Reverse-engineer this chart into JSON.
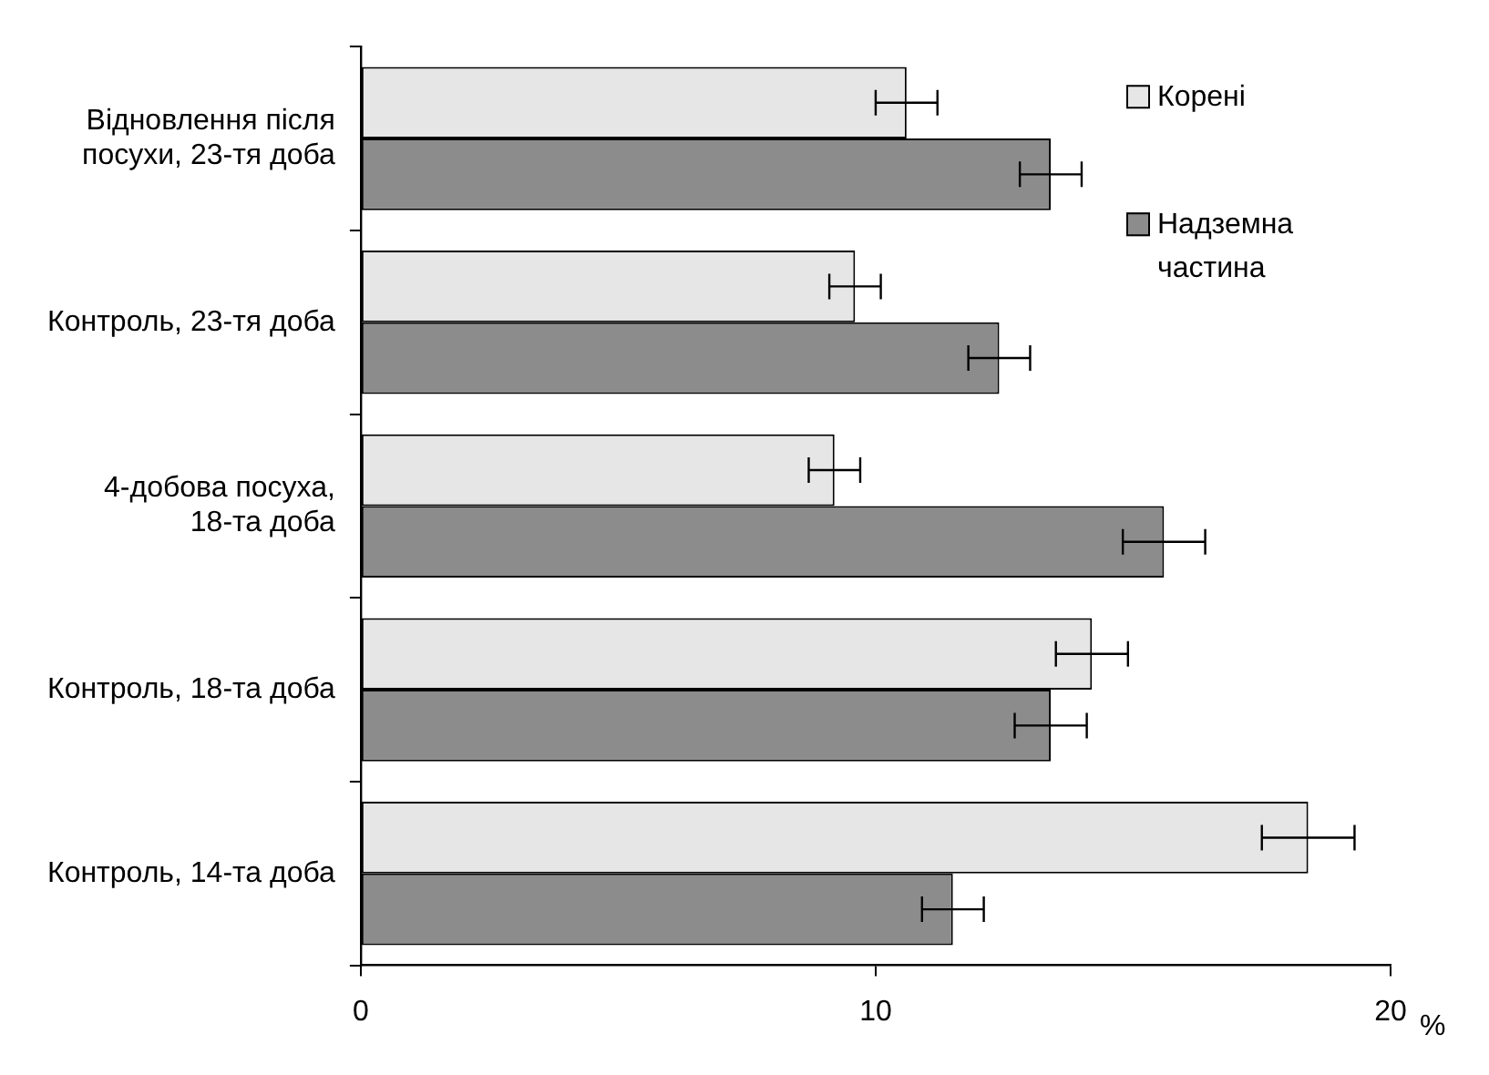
{
  "chart_data": {
    "type": "bar",
    "orientation": "horizontal",
    "categories": [
      "Відновлення після посухи, 23-тя доба",
      "Контроль, 23-тя доба",
      "4-добова посуха, 18-та доба",
      "Контроль, 18-та доба",
      "Контроль, 14-та доба"
    ],
    "series": [
      {
        "name": "Корені",
        "color": "#e6e6e6",
        "values": [
          10.6,
          9.6,
          9.2,
          14.2,
          18.4
        ],
        "errors": [
          0.6,
          0.5,
          0.5,
          0.7,
          0.9
        ]
      },
      {
        "name": "Надземна частина",
        "color": "#8c8c8c",
        "values": [
          13.4,
          12.4,
          15.6,
          13.4,
          11.5
        ],
        "errors": [
          0.6,
          0.6,
          0.8,
          0.7,
          0.6
        ]
      }
    ],
    "xlabel": "%",
    "xlim": [
      0,
      20
    ],
    "xticks": [
      0,
      10,
      20
    ],
    "grid": false,
    "legend": "top right"
  }
}
